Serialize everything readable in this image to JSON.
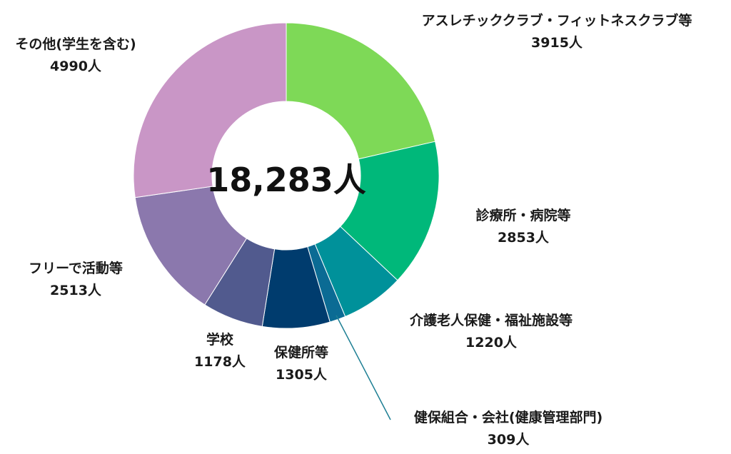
{
  "chart_data": {
    "type": "pie",
    "variant": "donut",
    "center_label": "18,283人",
    "slices": [
      {
        "label": "アスレチッククラブ・フィットネスクラブ等",
        "value": 3915,
        "value_label": "3915人",
        "color": "#7ed957"
      },
      {
        "label": "診療所・病院等",
        "value": 2853,
        "value_label": "2853人",
        "color": "#00b87a"
      },
      {
        "label": "介護老人保健・福祉施設等",
        "value": 1220,
        "value_label": "1220人",
        "color": "#00919a"
      },
      {
        "label": "健保組合・会社(健康管理部門)",
        "value": 309,
        "value_label": "309人",
        "color": "#0b6b94"
      },
      {
        "label": "保健所等",
        "value": 1305,
        "value_label": "1305人",
        "color": "#003c6e"
      },
      {
        "label": "学校",
        "value": 1178,
        "value_label": "1178人",
        "color": "#515a8e"
      },
      {
        "label": "フリーで活動等",
        "value": 2513,
        "value_label": "2513人",
        "color": "#8b78ad"
      },
      {
        "label": "その他(学生を含む)",
        "value": 4990,
        "value_label": "4990人",
        "color": "#c996c6"
      }
    ],
    "leader_line_color": "#1e7f94"
  }
}
